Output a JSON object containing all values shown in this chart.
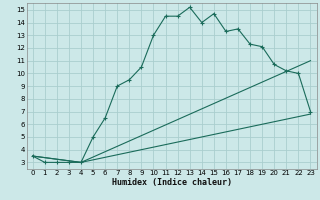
{
  "xlabel": "Humidex (Indice chaleur)",
  "background_color": "#cce8e8",
  "grid_color": "#aacece",
  "line_color": "#1a6b5a",
  "xlim": [
    -0.5,
    23.5
  ],
  "ylim": [
    2.5,
    15.5
  ],
  "xticks": [
    0,
    1,
    2,
    3,
    4,
    5,
    6,
    7,
    8,
    9,
    10,
    11,
    12,
    13,
    14,
    15,
    16,
    17,
    18,
    19,
    20,
    21,
    22,
    23
  ],
  "yticks": [
    3,
    4,
    5,
    6,
    7,
    8,
    9,
    10,
    11,
    12,
    13,
    14,
    15
  ],
  "series1_x": [
    0,
    1,
    2,
    3,
    4,
    5,
    6,
    7,
    8,
    9,
    10,
    11,
    12,
    13,
    14,
    15,
    16,
    17,
    18,
    19,
    20,
    21,
    22,
    23
  ],
  "series1_y": [
    3.5,
    3.0,
    3.0,
    3.0,
    3.0,
    5.0,
    6.5,
    9.0,
    9.5,
    10.5,
    13.0,
    14.5,
    14.5,
    15.2,
    14.0,
    14.7,
    13.3,
    13.5,
    12.3,
    12.1,
    10.7,
    10.2,
    10.0,
    7.0
  ],
  "series2_x": [
    0,
    4,
    23
  ],
  "series2_y": [
    3.5,
    3.0,
    11.0
  ],
  "series3_x": [
    0,
    4,
    23
  ],
  "series3_y": [
    3.5,
    3.0,
    6.8
  ]
}
